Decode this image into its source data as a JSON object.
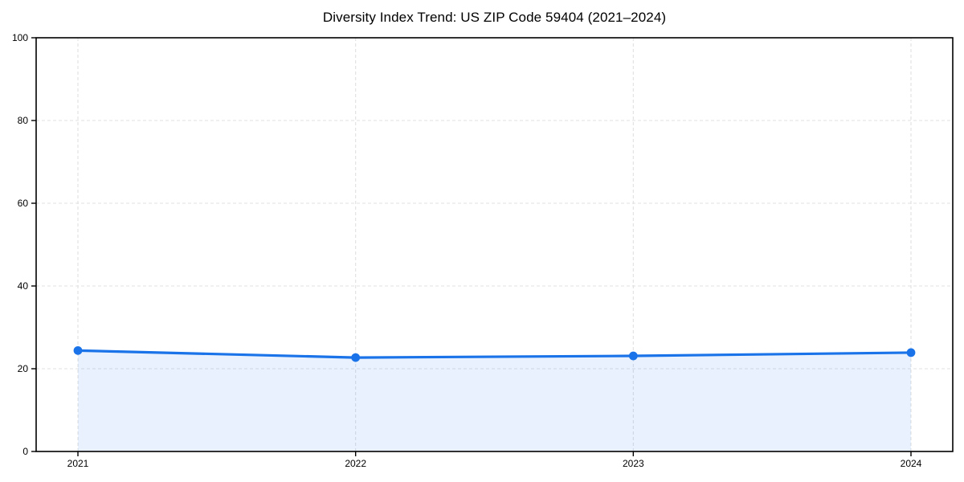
{
  "figure": {
    "background": "#ffffff"
  },
  "chart_data": {
    "type": "line",
    "title": "Diversity Index Trend: US ZIP Code 59404 (2021–2024)",
    "x": [
      "2021",
      "2022",
      "2023",
      "2024"
    ],
    "series": [
      {
        "name": "Diversity Index",
        "values": [
          24.4,
          22.7,
          23.1,
          23.9
        ]
      }
    ],
    "xlabel": "",
    "ylabel": "",
    "ylim": [
      0,
      100
    ],
    "yticks": [
      0,
      20,
      40,
      60,
      80,
      100
    ],
    "grid": "dashed",
    "legend": "none",
    "area_fill": true,
    "marker": "circle",
    "colors": {
      "line": "#1a73e8",
      "marker": "#1a73e8",
      "area": "rgba(26,115,232,0.10)",
      "grid": "#e0e0e0",
      "axis": "#000000",
      "text": "#000000"
    }
  }
}
